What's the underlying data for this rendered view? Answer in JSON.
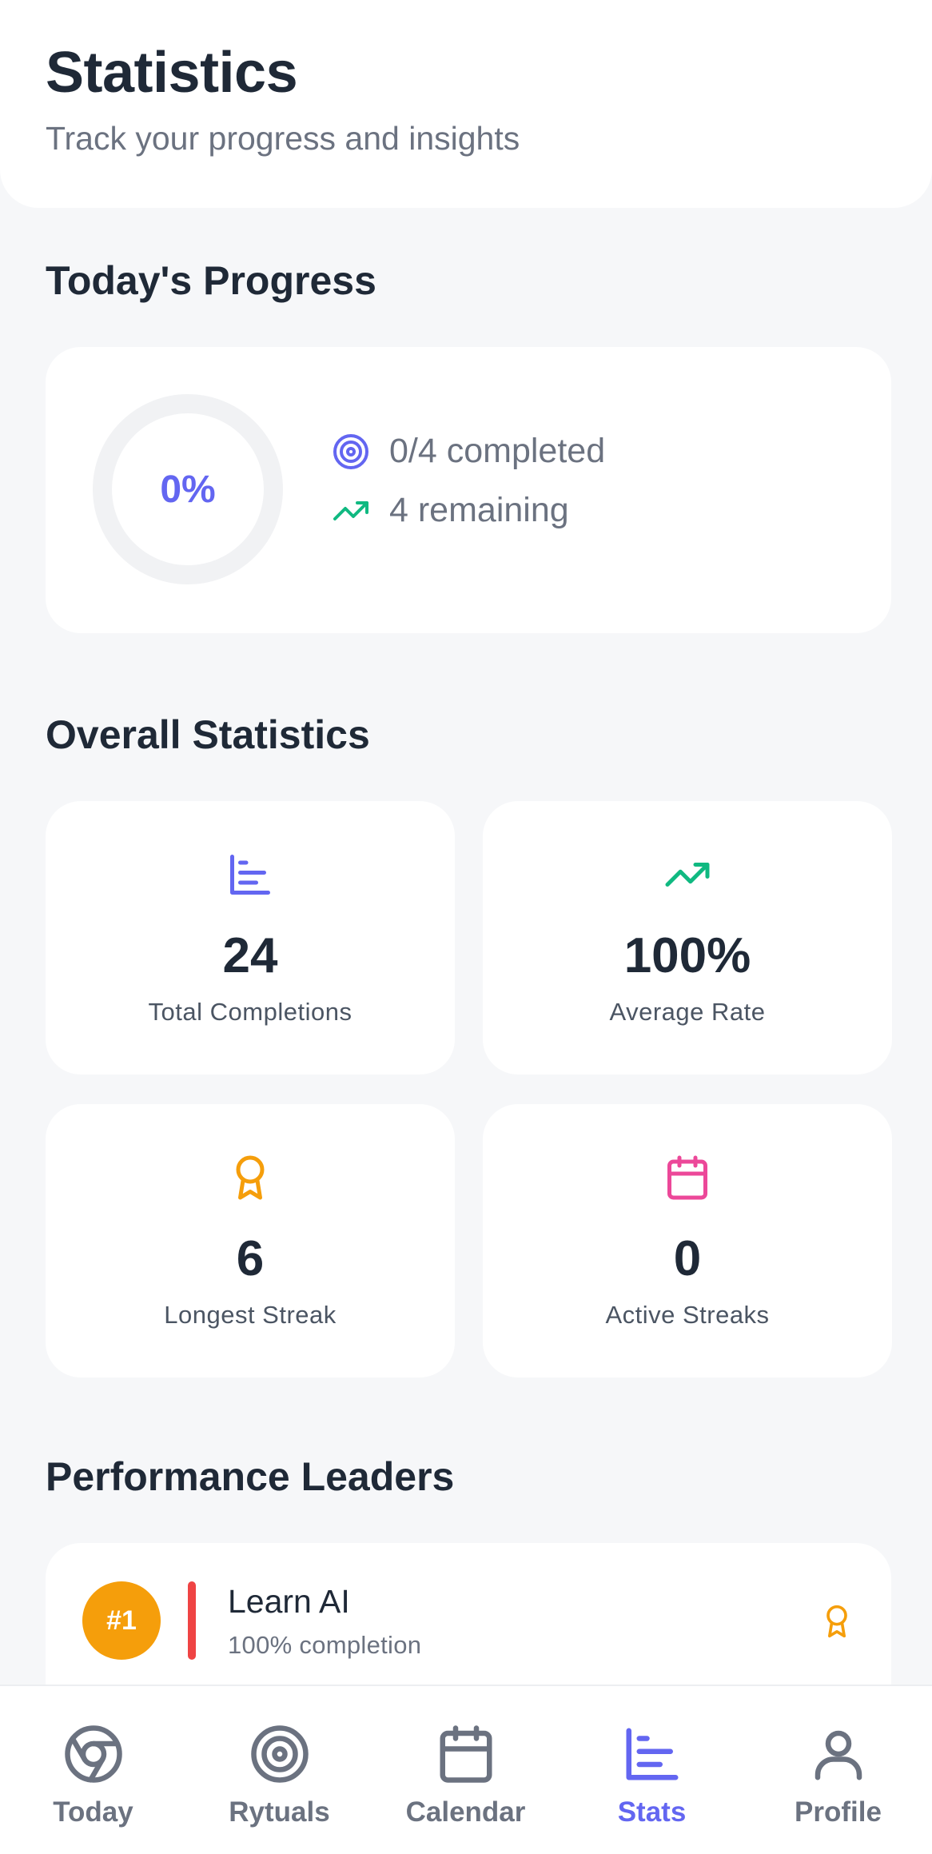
{
  "header": {
    "title": "Statistics",
    "subtitle": "Track your progress and insights"
  },
  "today": {
    "section_title": "Today's Progress",
    "percent_label": "0%",
    "progress_fraction": 0,
    "completed_text": "0/4 completed",
    "remaining_text": "4 remaining",
    "completed_icon": "target-icon",
    "remaining_icon": "trending-up-icon"
  },
  "overall": {
    "section_title": "Overall Statistics",
    "stats": [
      {
        "icon": "bar-chart-icon",
        "color": "#6366f1",
        "value": "24",
        "label": "Total Completions"
      },
      {
        "icon": "trending-up-icon",
        "color": "#10b981",
        "value": "100%",
        "label": "Average Rate"
      },
      {
        "icon": "award-icon",
        "color": "#f59e0b",
        "value": "6",
        "label": "Longest Streak"
      },
      {
        "icon": "calendar-icon",
        "color": "#ec4899",
        "value": "0",
        "label": "Active Streaks"
      }
    ]
  },
  "leaders": {
    "section_title": "Performance Leaders",
    "items": [
      {
        "rank": "#1",
        "name": "Learn AI",
        "completion": "100% completion",
        "accent": "#ef4444",
        "icon": "award-icon"
      }
    ]
  },
  "nav": {
    "items": [
      {
        "label": "Today",
        "icon": "chrome-icon",
        "active": false
      },
      {
        "label": "Rytuals",
        "icon": "target-icon",
        "active": false
      },
      {
        "label": "Calendar",
        "icon": "calendar-icon",
        "active": false
      },
      {
        "label": "Stats",
        "icon": "bar-chart-icon",
        "active": true
      },
      {
        "label": "Profile",
        "icon": "user-icon",
        "active": false
      }
    ]
  },
  "colors": {
    "primary": "#6366f1",
    "green": "#10b981",
    "amber": "#f59e0b",
    "pink": "#ec4899",
    "red": "#ef4444",
    "background": "#f6f7f9"
  }
}
